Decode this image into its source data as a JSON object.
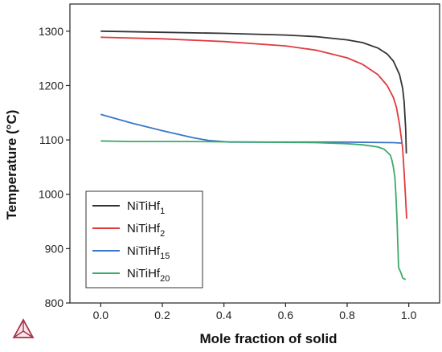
{
  "chart_data": {
    "type": "line",
    "xlabel": "Mole fraction of solid",
    "ylabel": "Temperature (°C)",
    "xlim": [
      -0.1,
      1.1
    ],
    "ylim": [
      800,
      1350
    ],
    "xticks": [
      0.0,
      0.2,
      0.4,
      0.6,
      0.8,
      1.0
    ],
    "xtick_labels": [
      "0.0",
      "0.2",
      "0.4",
      "0.6",
      "0.8",
      "1.0"
    ],
    "yticks": [
      800,
      900,
      1000,
      1100,
      1200,
      1300
    ],
    "ytick_labels": [
      "800",
      "900",
      "1000",
      "1100",
      "1200",
      "1300"
    ],
    "grid": false,
    "legend_position": "bottom-left",
    "series": [
      {
        "name": "NiTiHf1",
        "label_base": "NiTiHf",
        "label_sub": "1",
        "color": "#333333",
        "points": [
          [
            0.0,
            1300
          ],
          [
            0.2,
            1298
          ],
          [
            0.4,
            1296
          ],
          [
            0.6,
            1293
          ],
          [
            0.7,
            1290
          ],
          [
            0.8,
            1284
          ],
          [
            0.85,
            1279
          ],
          [
            0.9,
            1269
          ],
          [
            0.93,
            1258
          ],
          [
            0.95,
            1245
          ],
          [
            0.97,
            1220
          ],
          [
            0.98,
            1195
          ],
          [
            0.985,
            1170
          ],
          [
            0.99,
            1120
          ],
          [
            0.992,
            1075
          ]
        ]
      },
      {
        "name": "NiTiHf2",
        "label_base": "NiTiHf",
        "label_sub": "2",
        "color": "#e0393e",
        "points": [
          [
            0.0,
            1289
          ],
          [
            0.2,
            1286
          ],
          [
            0.4,
            1281
          ],
          [
            0.6,
            1273
          ],
          [
            0.7,
            1265
          ],
          [
            0.8,
            1251
          ],
          [
            0.85,
            1239
          ],
          [
            0.9,
            1220
          ],
          [
            0.93,
            1200
          ],
          [
            0.95,
            1178
          ],
          [
            0.96,
            1160
          ],
          [
            0.97,
            1128
          ],
          [
            0.98,
            1085
          ],
          [
            0.985,
            1040
          ],
          [
            0.99,
            990
          ],
          [
            0.993,
            955
          ]
        ]
      },
      {
        "name": "NiTiHf15",
        "label_base": "NiTiHf",
        "label_sub": "15",
        "color": "#3a76c8",
        "points": [
          [
            0.0,
            1147
          ],
          [
            0.1,
            1131
          ],
          [
            0.2,
            1117
          ],
          [
            0.3,
            1104
          ],
          [
            0.35,
            1099
          ],
          [
            0.42,
            1096
          ],
          [
            0.6,
            1096
          ],
          [
            0.8,
            1096
          ],
          [
            0.95,
            1095
          ],
          [
            0.98,
            1094
          ]
        ]
      },
      {
        "name": "NiTiHf20",
        "label_base": "NiTiHf",
        "label_sub": "20",
        "color": "#3daa6a",
        "points": [
          [
            0.0,
            1098
          ],
          [
            0.1,
            1097
          ],
          [
            0.3,
            1097
          ],
          [
            0.5,
            1096
          ],
          [
            0.7,
            1095
          ],
          [
            0.8,
            1093
          ],
          [
            0.85,
            1091
          ],
          [
            0.9,
            1087
          ],
          [
            0.92,
            1083
          ],
          [
            0.94,
            1072
          ],
          [
            0.945,
            1063
          ],
          [
            0.95,
            1050
          ],
          [
            0.955,
            1030
          ],
          [
            0.958,
            1000
          ],
          [
            0.962,
            950
          ],
          [
            0.965,
            900
          ],
          [
            0.967,
            865
          ],
          [
            0.975,
            855
          ],
          [
            0.98,
            846
          ],
          [
            0.99,
            843
          ]
        ]
      }
    ]
  }
}
